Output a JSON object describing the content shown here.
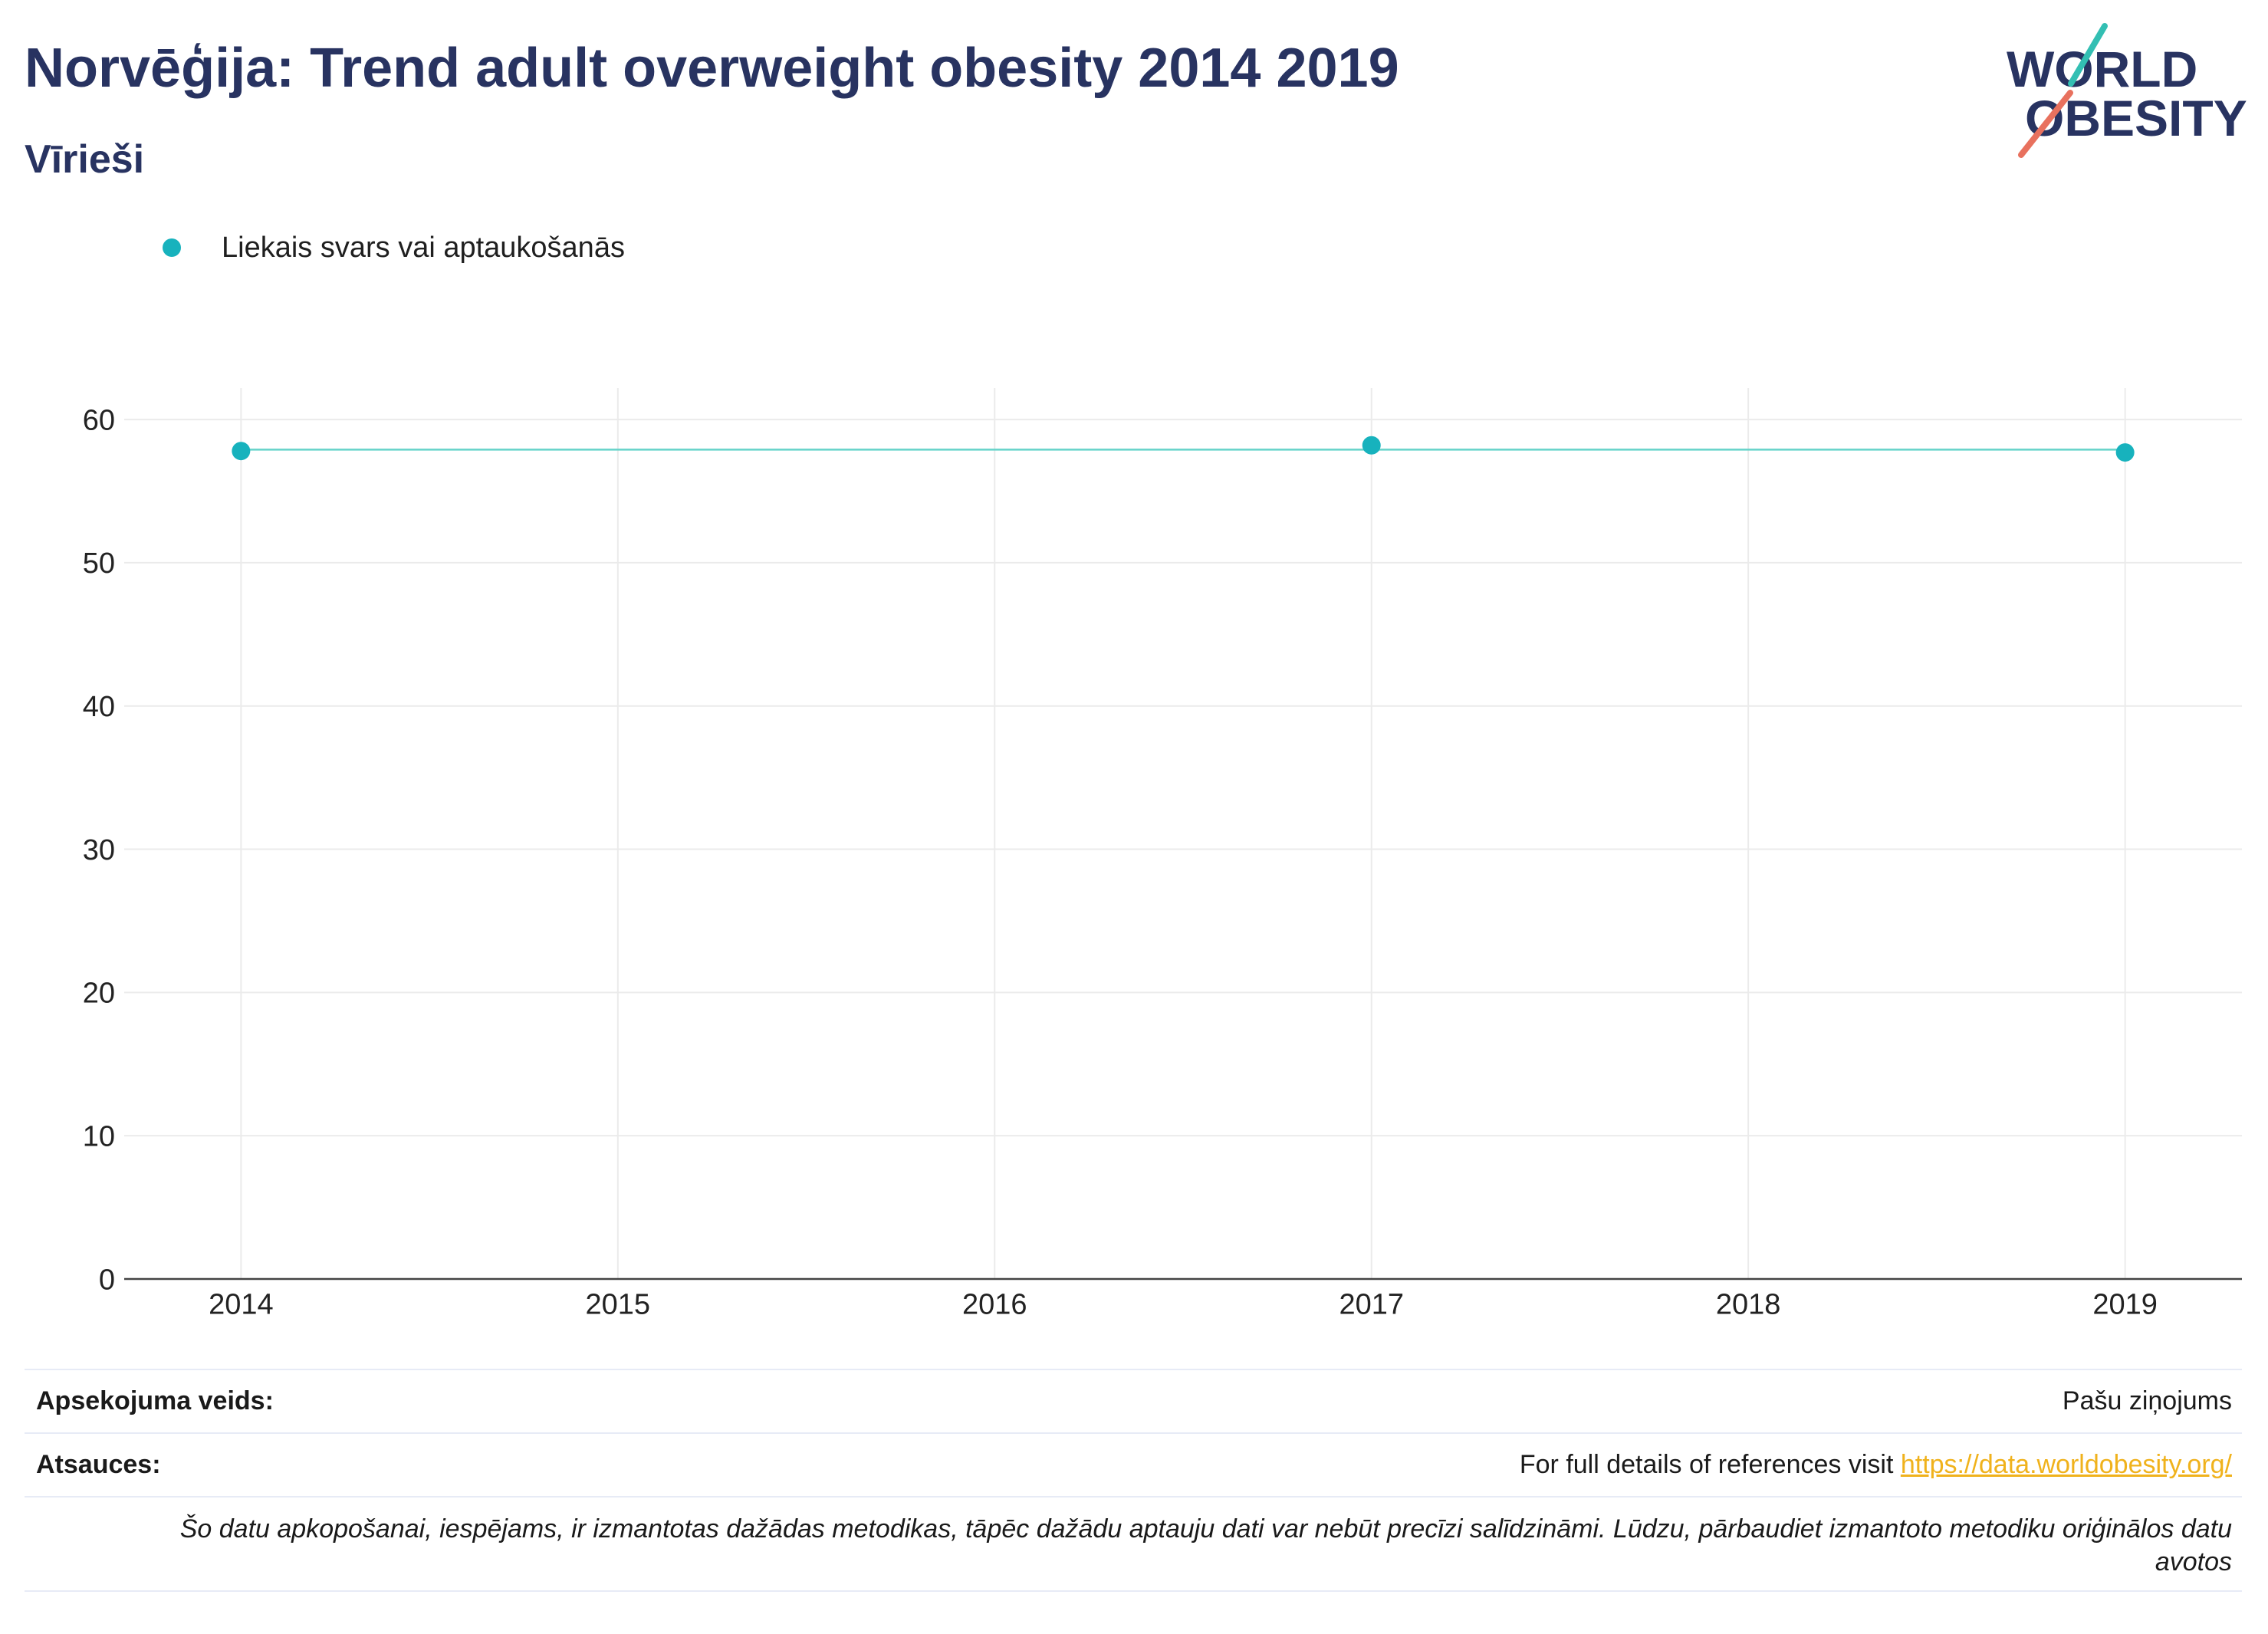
{
  "colors": {
    "title": "#283361",
    "marker": "#17b2bd",
    "trend_line": "#66d3c9",
    "grid": "#ebebeb",
    "axis": "#444444",
    "separator": "#e7ebf6",
    "link": "#f0b21c",
    "logo_teal": "#33bfb3",
    "logo_coral": "#e8715e"
  },
  "logo": {
    "line1": "WORLD",
    "line2": "OBESITY"
  },
  "chart_data": {
    "type": "line",
    "title": "Norvēģija: Trend adult overweight obesity 2014 2019",
    "subtitle": "Vīrieši",
    "x": [
      2014,
      2017,
      2019
    ],
    "series": [
      {
        "name": "Liekais svars vai aptaukošanās",
        "values": [
          57.8,
          58.2,
          57.7
        ]
      }
    ],
    "trend": {
      "x": [
        2014,
        2019
      ],
      "values": [
        57.9,
        57.9
      ]
    },
    "xticks": [
      2014,
      2015,
      2016,
      2017,
      2018,
      2019
    ],
    "yticks": [
      0,
      10,
      20,
      30,
      40,
      50,
      60
    ],
    "xlim": [
      2013.69,
      2019.31
    ],
    "ylim": [
      0,
      62.2
    ],
    "grid": true,
    "legend": "top-left"
  },
  "footer": {
    "survey_type_label": "Apsekojuma veids:",
    "survey_type_value": "Pašu ziņojums",
    "references_label": "Atsauces:",
    "references_text": "For full details of references visit ",
    "references_link": "https://data.worldobesity.org/",
    "note": "Šo datu apkopošanai, iespējams, ir izmantotas dažādas metodikas, tāpēc dažādu aptauju dati var nebūt precīzi salīdzināmi. Lūdzu, pārbaudiet izmantoto metodiku oriģinālos datu avotos"
  }
}
